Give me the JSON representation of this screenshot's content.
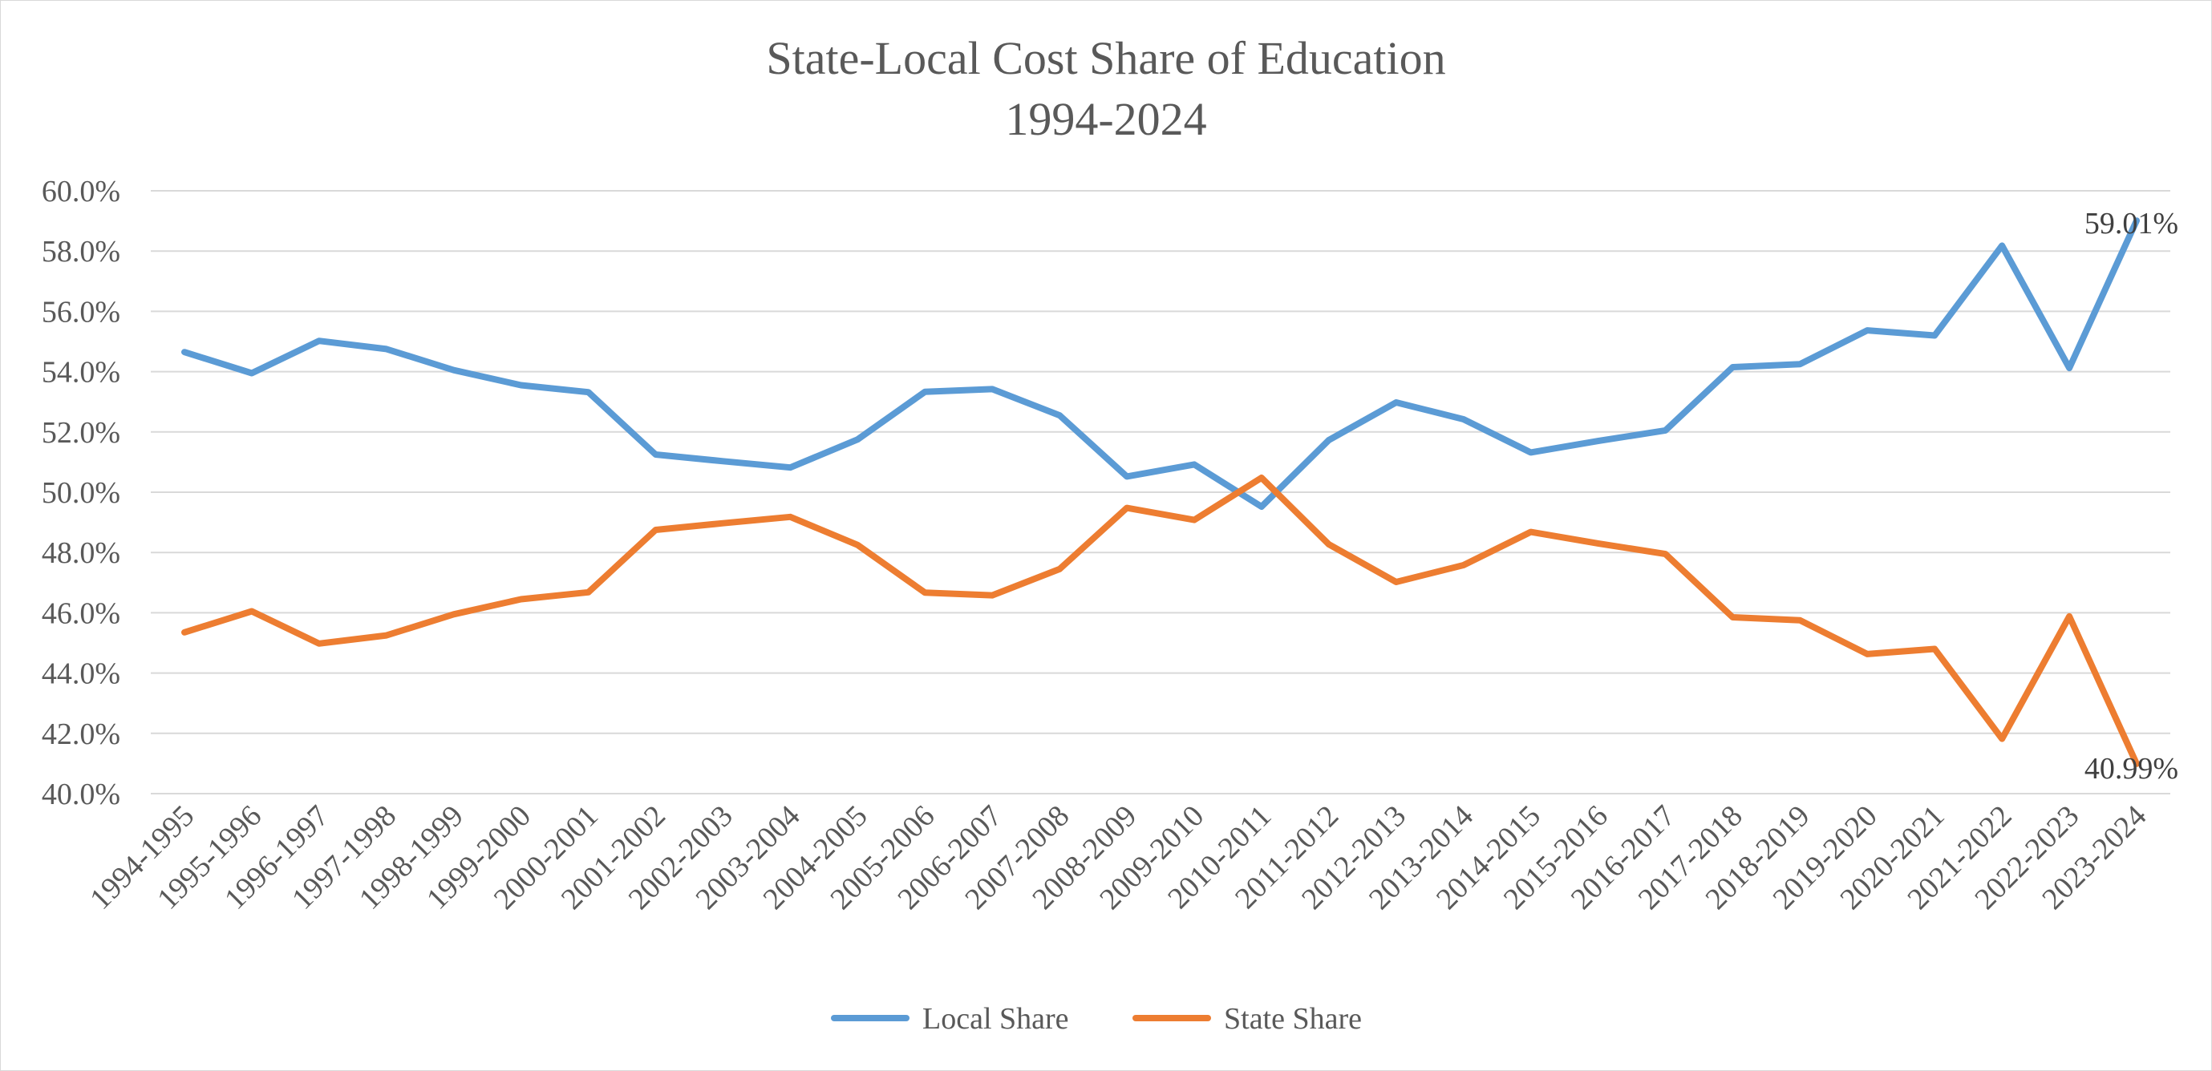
{
  "chart_data": {
    "type": "line",
    "title": [
      "State-Local Cost Share of Education",
      "1994-2024"
    ],
    "xlabel": "",
    "ylabel": "",
    "ylim": [
      40.0,
      60.0
    ],
    "y_ticks": [
      "40.0%",
      "42.0%",
      "44.0%",
      "46.0%",
      "48.0%",
      "50.0%",
      "52.0%",
      "54.0%",
      "56.0%",
      "58.0%",
      "60.0%"
    ],
    "y_tick_values": [
      40,
      42,
      44,
      46,
      48,
      50,
      52,
      54,
      56,
      58,
      60
    ],
    "grid": true,
    "legend_position": "bottom",
    "categories": [
      "1994-1995",
      "1995-1996",
      "1996-1997",
      "1997-1998",
      "1998-1999",
      "1999-2000",
      "2000-2001",
      "2001-2002",
      "2002-2003",
      "2003-2004",
      "2004-2005",
      "2005-2006",
      "2006-2007",
      "2007-2008",
      "2008-2009",
      "2009-2010",
      "2010-2011",
      "2011-2012",
      "2012-2013",
      "2013-2014",
      "2014-2015",
      "2015-2016",
      "2016-2017",
      "2017-2018",
      "2018-2019",
      "2019-2020",
      "2020-2021",
      "2021-2022",
      "2022-2023",
      "2023-2024"
    ],
    "series": [
      {
        "name": "Local Share",
        "color": "#5b9bd5",
        "values": [
          54.65,
          53.95,
          55.02,
          54.75,
          54.05,
          53.55,
          53.32,
          51.25,
          51.03,
          50.82,
          51.75,
          53.33,
          53.42,
          52.55,
          50.52,
          50.92,
          49.52,
          51.73,
          52.98,
          52.42,
          51.32,
          51.7,
          52.05,
          54.15,
          54.25,
          55.37,
          55.2,
          58.18,
          54.12,
          59.01
        ],
        "end_label": "59.01%"
      },
      {
        "name": "State Share",
        "color": "#ed7d31",
        "values": [
          45.35,
          46.05,
          44.98,
          45.25,
          45.95,
          46.45,
          46.68,
          48.75,
          48.97,
          49.18,
          48.25,
          46.67,
          46.58,
          47.45,
          49.48,
          49.08,
          50.48,
          48.27,
          47.02,
          47.58,
          48.68,
          48.3,
          47.95,
          45.85,
          45.75,
          44.63,
          44.8,
          41.82,
          45.88,
          40.99
        ],
        "end_label": "40.99%"
      }
    ]
  }
}
